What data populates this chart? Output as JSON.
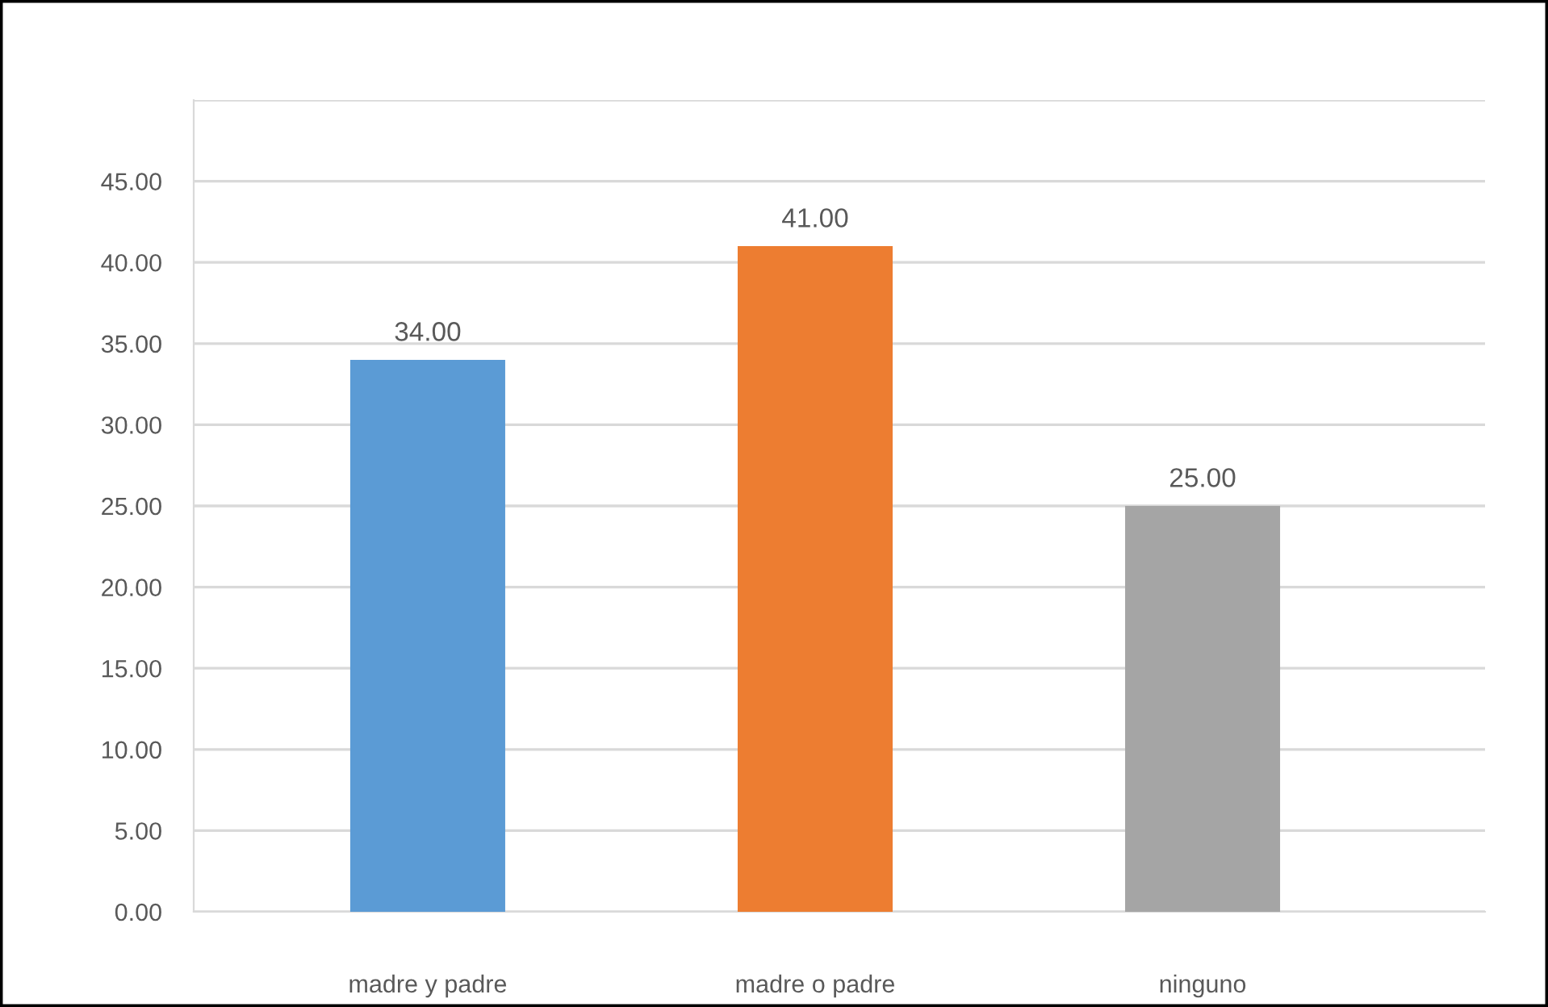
{
  "chart_data": {
    "type": "bar",
    "categories": [
      "madre y padre",
      "madre o padre",
      "ninguno"
    ],
    "values": [
      34,
      41,
      25
    ],
    "colors": [
      "#5b9bd5",
      "#ed7d31",
      "#a5a5a5"
    ],
    "value_labels": [
      "34.00",
      "41.00",
      "25.00"
    ],
    "ylim": [
      0,
      50
    ],
    "yticks": [
      {
        "value": 0,
        "label": "0.00"
      },
      {
        "value": 5,
        "label": "5.00"
      },
      {
        "value": 10,
        "label": "10.00"
      },
      {
        "value": 15,
        "label": "15.00"
      },
      {
        "value": 20,
        "label": "20.00"
      },
      {
        "value": 25,
        "label": "25.00"
      },
      {
        "value": 30,
        "label": "30.00"
      },
      {
        "value": 35,
        "label": "35.00"
      },
      {
        "value": 40,
        "label": "40.00"
      },
      {
        "value": 45,
        "label": "45.00"
      },
      {
        "value": 50,
        "label": null
      }
    ],
    "grid": "y",
    "legend": false
  }
}
